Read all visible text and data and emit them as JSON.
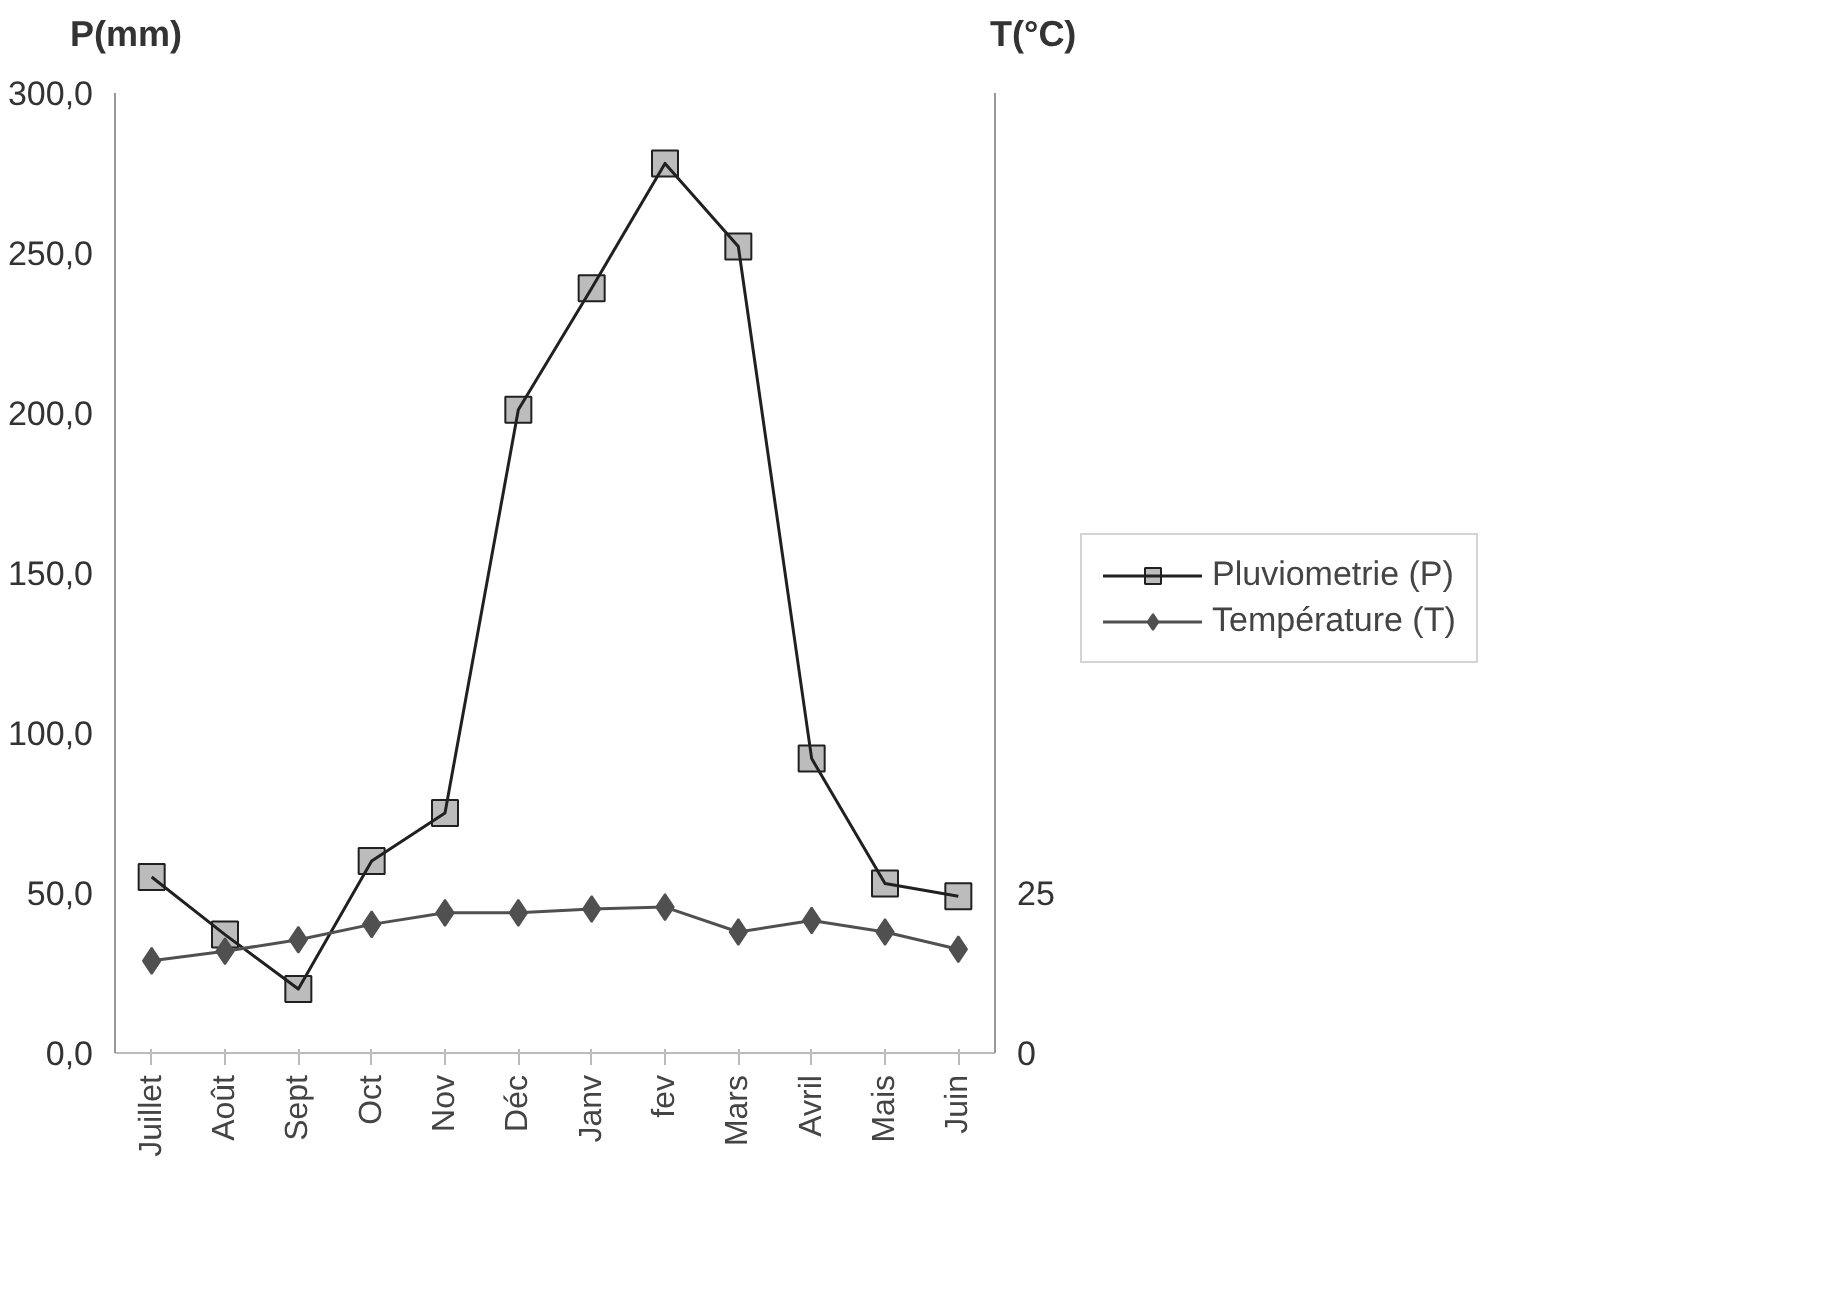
{
  "chart_data": {
    "type": "line",
    "ylabel": "P(mm)",
    "y2label": "T(°C)",
    "categories": [
      "Juillet",
      "Août",
      "Sept",
      "Oct",
      "Nov",
      "Déc",
      "Janv",
      "fev",
      "Mars",
      "Avril",
      "Mais",
      "Juin"
    ],
    "series": [
      {
        "name": "Pluviometrie (P)",
        "color": "#202020",
        "marker": "square",
        "values": [
          55,
          37,
          20,
          60,
          75,
          201,
          239,
          278,
          252,
          92,
          53,
          49
        ]
      },
      {
        "name": "Température (T)",
        "color": "#505050",
        "marker": "diamond",
        "axis": "y2",
        "values": [
          14.4,
          15.9,
          17.7,
          20.1,
          21.9,
          21.9,
          22.5,
          22.8,
          18.9,
          20.7,
          18.9,
          16.2
        ]
      }
    ],
    "ylim": [
      0,
      300
    ],
    "yticks": [
      {
        "value": 0,
        "label": "0,0"
      },
      {
        "value": 50,
        "label": "50,0"
      },
      {
        "value": 100,
        "label": "100,0"
      },
      {
        "value": 150,
        "label": "150,0"
      },
      {
        "value": 200,
        "label": "200,0"
      },
      {
        "value": 250,
        "label": "250,0"
      },
      {
        "value": 300,
        "label": "300,0"
      }
    ],
    "y2lim": [
      0,
      150
    ],
    "y2ticks": [
      0,
      25
    ],
    "grid": false,
    "legend": "right",
    "line_style": "solid"
  }
}
